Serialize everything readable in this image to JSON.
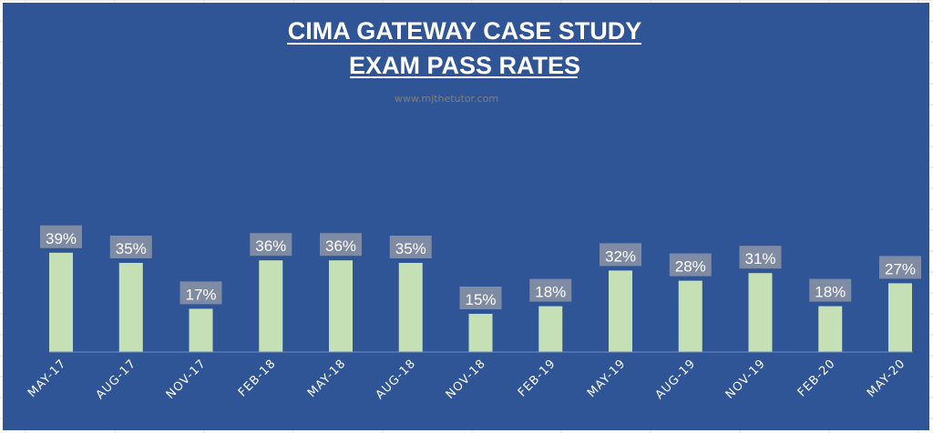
{
  "chart_data": {
    "type": "bar",
    "title_lines": [
      "CIMA GATEWAY CASE STUDY",
      "EXAM PASS RATES"
    ],
    "subtitle": "www.mjthetutor.com",
    "categories": [
      "MAY-17",
      "AUG-17",
      "NOV-17",
      "FEB-18",
      "MAY-18",
      "AUG-18",
      "NOV-18",
      "FEB-19",
      "MAY-19",
      "AUG-19",
      "NOV-19",
      "FEB-20",
      "MAY-20"
    ],
    "values": [
      39,
      35,
      17,
      36,
      36,
      35,
      15,
      18,
      32,
      28,
      31,
      18,
      27
    ],
    "data_labels": [
      "39%",
      "35%",
      "17%",
      "36%",
      "36%",
      "35%",
      "15%",
      "18%",
      "32%",
      "28%",
      "31%",
      "18%",
      "27%"
    ],
    "xlabel": "",
    "ylabel": "",
    "ylim": [
      0,
      100
    ],
    "unit": "%",
    "grid": false,
    "legend": "none",
    "colors": {
      "background": "#2f5597",
      "bar": "#c5e0b4",
      "label_box": "#7f8aa3",
      "text": "#ffffff",
      "subtitle": "#7f7f7f"
    }
  }
}
